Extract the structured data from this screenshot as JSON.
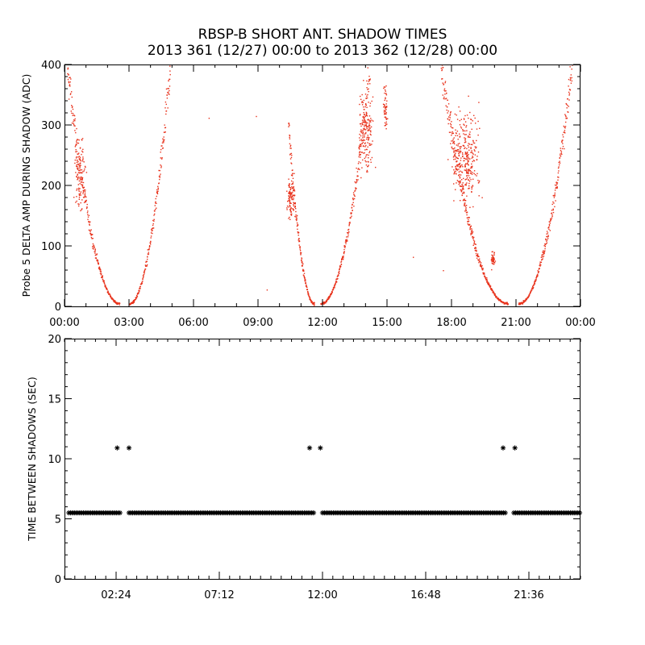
{
  "title": {
    "line1": "RBSP-B SHORT ANT. SHADOW TIMES",
    "line2": "2013 361 (12/27) 00:00 to 2013 362 (12/28) 00:00"
  },
  "colors": {
    "top_points": "#e8321c",
    "bottom_points": "#000000",
    "axes": "#000000"
  },
  "chart_data": [
    {
      "type": "scatter",
      "title": "",
      "xlabel": "",
      "ylabel": "Probe 5 DELTA AMP DURING SHADOW (ADC)",
      "xlim": [
        0,
        24
      ],
      "ylim": [
        0,
        400
      ],
      "xtick_values": [
        0,
        3,
        6,
        9,
        12,
        15,
        18,
        21,
        24
      ],
      "xtick_labels": [
        "00:00",
        "03:00",
        "06:00",
        "09:00",
        "12:00",
        "15:00",
        "18:00",
        "21:00",
        "00:00"
      ],
      "yticks": [
        0,
        100,
        200,
        300,
        400
      ],
      "marker": "dot",
      "grid": false,
      "segments": [
        {
          "t_start": 0.1,
          "t_end": 2.55,
          "v_start": 400,
          "v_end": 5,
          "points_per_hour": 110
        },
        {
          "t_start": 3.0,
          "t_end": 4.9,
          "v_start": 5,
          "v_end": 400,
          "points_per_hour": 110
        },
        {
          "t_start": 10.4,
          "t_end": 11.6,
          "v_start": 300,
          "v_end": 5,
          "points_per_hour": 150
        },
        {
          "t_start": 11.9,
          "t_end": 14.2,
          "v_start": 5,
          "v_end": 400,
          "points_per_hour": 110
        },
        {
          "t_start": 17.5,
          "t_end": 20.6,
          "v_start": 400,
          "v_end": 5,
          "points_per_hour": 110
        },
        {
          "t_start": 21.1,
          "t_end": 23.6,
          "v_start": 5,
          "v_end": 400,
          "points_per_hour": 110
        }
      ],
      "clusters": [
        {
          "t": 10.5,
          "v": 180,
          "dt": 0.25,
          "dv": 50,
          "n": 100
        },
        {
          "t": 14.0,
          "v": 290,
          "dt": 0.5,
          "dv": 100,
          "n": 170
        },
        {
          "t": 14.9,
          "v": 330,
          "dt": 0.15,
          "dv": 60,
          "n": 50
        },
        {
          "t": 18.6,
          "v": 250,
          "dt": 0.9,
          "dv": 110,
          "n": 320
        },
        {
          "t": 19.9,
          "v": 80,
          "dt": 0.15,
          "dv": 20,
          "n": 40
        },
        {
          "t": 0.7,
          "v": 220,
          "dt": 0.35,
          "dv": 90,
          "n": 110
        }
      ],
      "isolated_points": [
        {
          "t": 6.7,
          "v": 312
        },
        {
          "t": 8.9,
          "v": 315
        },
        {
          "t": 9.4,
          "v": 28
        },
        {
          "t": 12.0,
          "v": 8
        },
        {
          "t": 16.2,
          "v": 82
        },
        {
          "t": 17.6,
          "v": 60
        }
      ]
    },
    {
      "type": "scatter",
      "title": "",
      "xlabel": "",
      "ylabel": "TIME BETWEEN SHADOWS (SEC)",
      "xlim": [
        0,
        24
      ],
      "ylim": [
        0,
        20
      ],
      "xtick_values": [
        2.4,
        7.2,
        12.0,
        16.8,
        21.6
      ],
      "xtick_labels": [
        "02:24",
        "07:12",
        "12:00",
        "16:48",
        "21:36"
      ],
      "yticks": [
        0,
        5,
        10,
        15,
        20
      ],
      "marker": "asterisk",
      "grid": false,
      "band": {
        "value": 5.5,
        "segments": [
          [
            0.2,
            2.6
          ],
          [
            3.0,
            11.6
          ],
          [
            12.0,
            20.5
          ],
          [
            20.9,
            24.0
          ]
        ]
      },
      "points": [
        {
          "t": 2.45,
          "v": 10.9
        },
        {
          "t": 3.0,
          "v": 10.9
        },
        {
          "t": 11.4,
          "v": 10.9
        },
        {
          "t": 11.9,
          "v": 10.9
        },
        {
          "t": 20.4,
          "v": 10.9
        },
        {
          "t": 20.95,
          "v": 10.9
        }
      ]
    }
  ]
}
